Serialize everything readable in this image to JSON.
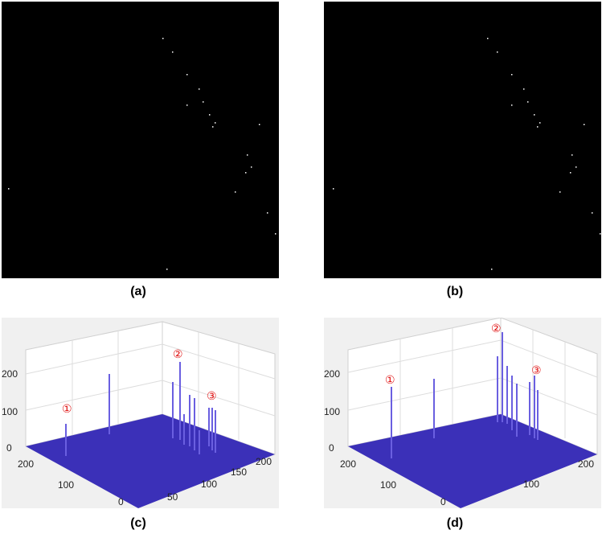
{
  "panels": {
    "a": {
      "caption": "(a)"
    },
    "b": {
      "caption": "(b)"
    },
    "c": {
      "caption": "(c)",
      "z_ticks": [
        "0",
        "100",
        "200"
      ],
      "left_ticks": [
        "200",
        "100",
        "0"
      ],
      "right_ticks": [
        "50",
        "100",
        "150",
        "200"
      ],
      "markers": [
        "①",
        "②",
        "③"
      ]
    },
    "d": {
      "caption": "(d)",
      "z_ticks": [
        "0",
        "100",
        "200"
      ],
      "left_ticks": [
        "200",
        "100",
        "0"
      ],
      "right_ticks": [
        "100",
        "200"
      ],
      "markers": [
        "①",
        "②",
        "③"
      ]
    }
  },
  "colors": {
    "image_bg": "#000000",
    "plot_bg": "#f0f0f0",
    "surface": "#3b30b8",
    "spike": "#5a4fd6",
    "marker": "#e01010"
  }
}
